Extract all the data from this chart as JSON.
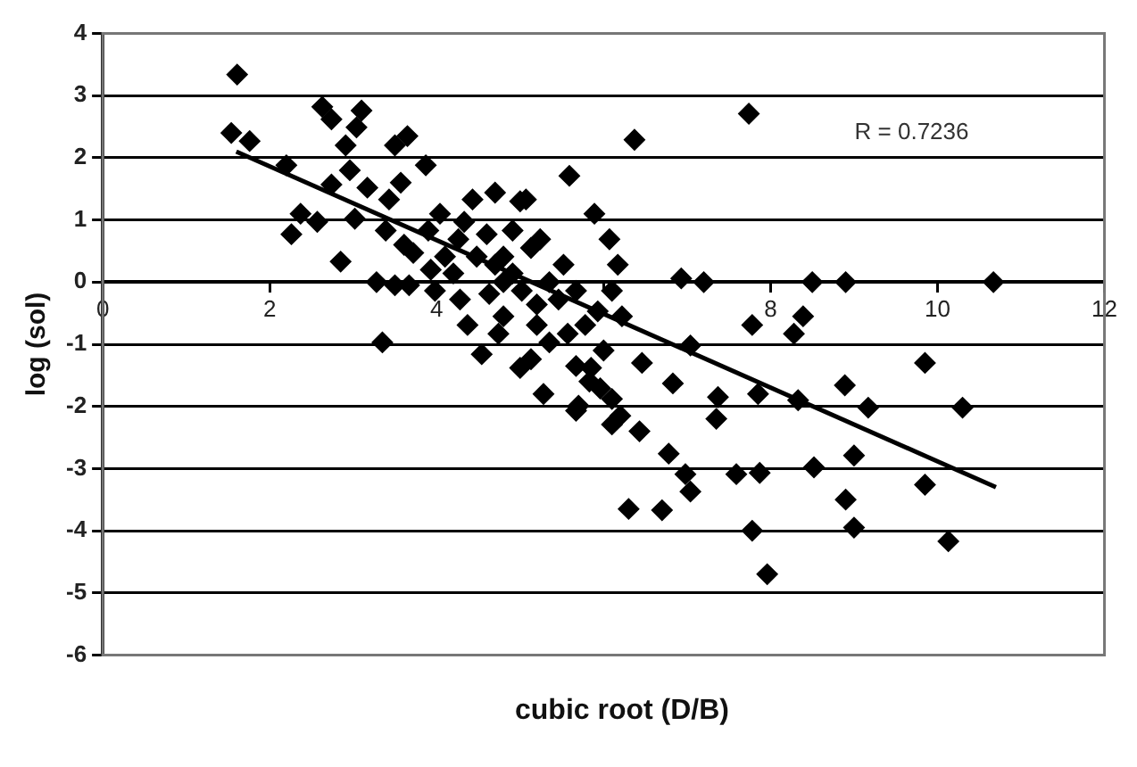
{
  "chart_data": {
    "type": "scatter",
    "xlabel": "cubic root (D/B)",
    "ylabel": "log (sol)",
    "annotations": [
      "R = 0.7236"
    ],
    "xlim": [
      0,
      12
    ],
    "ylim": [
      -6,
      4
    ],
    "xticks": [
      0,
      2,
      4,
      {
        "value": 6,
        "label": null
      },
      8,
      10,
      12
    ],
    "yticks": [
      -6,
      -5,
      -4,
      -3,
      -2,
      -1,
      0,
      1,
      2,
      3,
      4
    ],
    "grid": "y",
    "marker": "diamond",
    "legend": false,
    "series": [
      {
        "color": "#000000",
        "x": [
          1.61,
          1.54,
          1.76,
          2.2,
          2.37,
          2.26,
          2.57,
          2.85,
          2.63,
          2.74,
          3.1,
          3.04,
          2.91,
          2.96,
          2.74,
          3.17,
          3.5,
          3.65,
          3.87,
          3.57,
          3.43,
          3.02,
          3.39,
          3.61,
          3.72,
          3.28,
          3.5,
          3.67,
          3.35,
          3.98,
          4.2,
          4.28,
          4.43,
          4.7,
          5.0,
          4.33,
          4.6,
          4.26,
          4.48,
          4.7,
          4.8,
          4.63,
          4.37,
          4.54,
          5.0,
          5.13,
          5.2,
          5.59,
          5.07,
          5.89,
          5.24,
          6.07,
          6.17,
          5.52,
          6.37,
          7.74,
          6.93,
          7.2,
          8.5,
          8.9,
          10.67,
          7.78,
          8.39,
          8.28,
          5.67,
          5.83,
          5.96,
          5.7,
          6.1,
          6.2,
          6.43,
          6.46,
          6.83,
          7.37,
          7.35,
          7.85,
          8.33,
          8.89,
          9.17,
          9.85,
          10.3,
          6.78,
          6.98,
          7.59,
          7.87,
          8.52,
          9.0,
          9.85,
          7.04,
          6.3,
          6.7,
          7.78,
          8.9,
          9.0,
          10.13,
          7.96,
          5.67,
          6.1,
          5.85,
          5.28,
          7.04,
          4.8,
          4.91,
          5.02,
          5.2,
          5.35,
          5.46,
          5.13,
          4.91,
          5.67,
          5.78,
          5.93,
          6.1,
          6.22,
          5.57,
          5.35,
          4.8,
          4.74,
          6.0,
          4.1,
          3.9,
          4.04,
          3.93
        ],
        "values": [
          3.34,
          2.4,
          2.27,
          1.88,
          1.1,
          0.77,
          0.97,
          0.33,
          2.82,
          2.62,
          2.76,
          2.49,
          2.2,
          1.8,
          1.57,
          1.52,
          2.2,
          2.35,
          1.88,
          1.6,
          1.33,
          1.02,
          0.83,
          0.6,
          0.47,
          0.0,
          -0.05,
          -0.05,
          -0.97,
          -0.14,
          0.14,
          -0.28,
          1.33,
          1.44,
          1.3,
          0.97,
          0.77,
          0.69,
          0.41,
          0.28,
          0.0,
          -0.19,
          -0.69,
          -1.16,
          -1.38,
          -1.24,
          -0.69,
          1.71,
          1.33,
          1.1,
          0.69,
          0.69,
          0.28,
          0.28,
          2.29,
          2.71,
          0.06,
          0.0,
          0.0,
          0.0,
          0.0,
          -0.69,
          -0.55,
          -0.83,
          -1.35,
          -1.6,
          -1.71,
          -1.99,
          -1.88,
          -2.15,
          -2.4,
          -1.3,
          -1.63,
          -1.85,
          -2.2,
          -1.8,
          -1.9,
          -1.66,
          -2.02,
          -1.3,
          -2.02,
          -2.76,
          -3.09,
          -3.09,
          -3.07,
          -2.98,
          -2.79,
          -3.26,
          -3.37,
          -3.65,
          -3.67,
          -4.0,
          -3.5,
          -3.95,
          -4.17,
          -4.7,
          -2.07,
          -2.29,
          -1.38,
          -1.8,
          -1.02,
          0.41,
          0.14,
          -0.14,
          -0.36,
          0.0,
          -0.28,
          0.55,
          0.83,
          -0.14,
          -0.69,
          -0.47,
          -0.14,
          -0.55,
          -0.83,
          -0.97,
          -0.55,
          -0.83,
          -1.1,
          0.41,
          0.83,
          1.1,
          0.2
        ]
      },
      {
        "type": "line",
        "marker": "none",
        "color": "#000000",
        "x": [
          1.6,
          10.7
        ],
        "values": [
          2.1,
          -3.3
        ]
      }
    ]
  }
}
